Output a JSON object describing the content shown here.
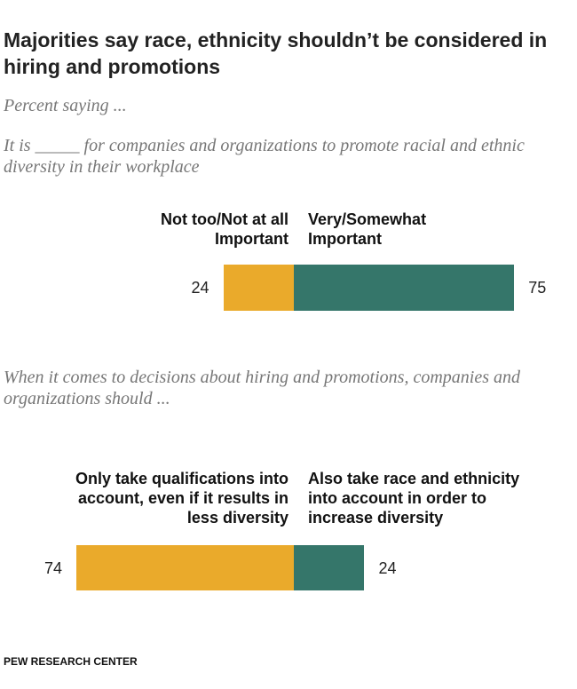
{
  "title": "Majorities say race, ethnicity shouldn’t be considered in hiring and promotions",
  "subtitle": "Percent saying ...",
  "source": "PEW RESEARCH CENTER",
  "chart_data": [
    {
      "type": "bar",
      "question": "It is _____ for companies and organizations to promote racial and ethnic diversity in their workplace",
      "series": [
        {
          "name": "Not too/Not at all Important",
          "color": "#eaaa2b",
          "values": [
            24
          ]
        },
        {
          "name": "Very/Somewhat Important",
          "color": "#35766a",
          "values": [
            75
          ]
        }
      ]
    },
    {
      "type": "bar",
      "question": "When it comes to decisions about hiring and promotions, companies and organizations should ...",
      "series": [
        {
          "name": "Only take qualifications into account, even if it results in less diversity",
          "color": "#eaaa2b",
          "values": [
            74
          ]
        },
        {
          "name": "Also take race and ethnicity into account in order to increase diversity",
          "color": "#35766a",
          "values": [
            24
          ]
        }
      ]
    }
  ]
}
